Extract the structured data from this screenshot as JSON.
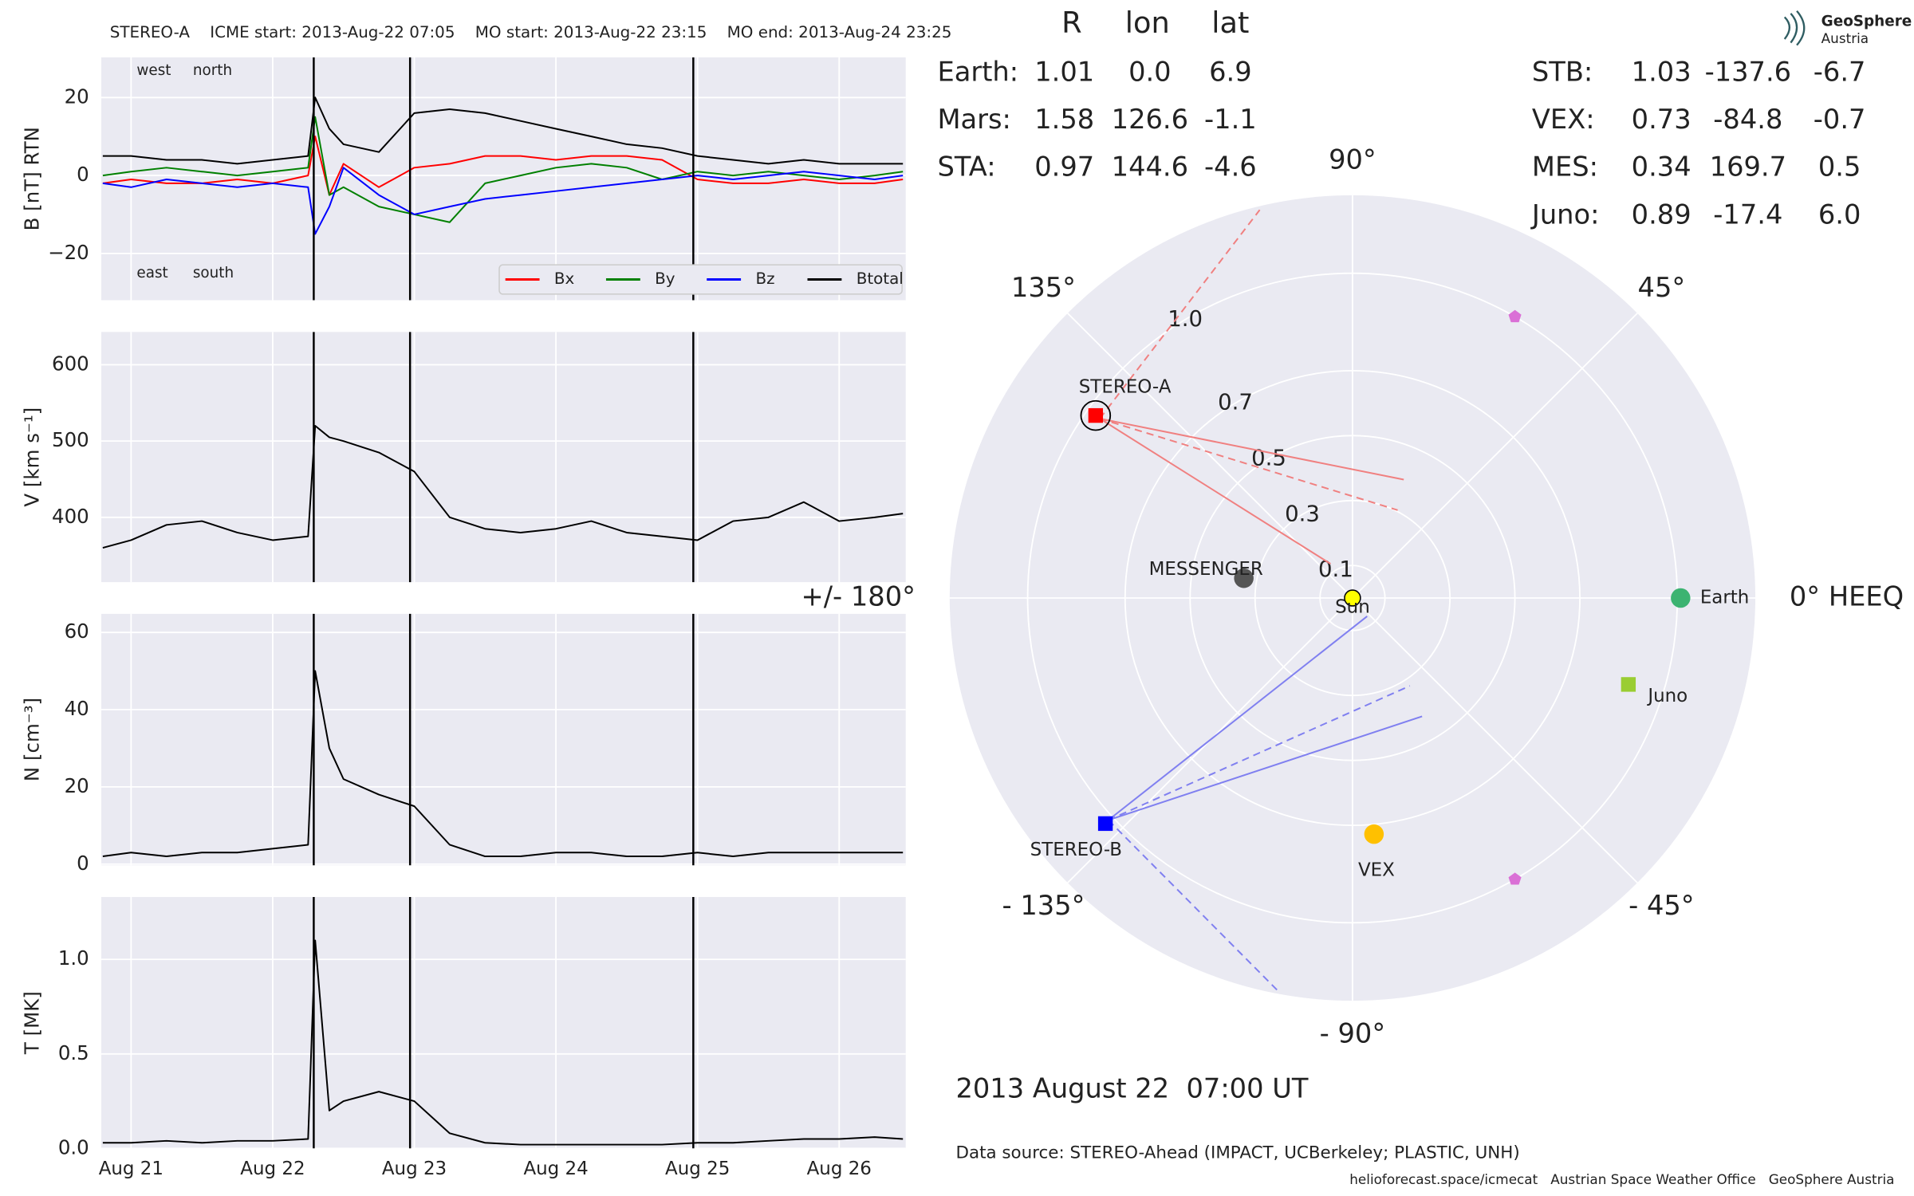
{
  "chart_data": [
    {
      "type": "line",
      "title": "STEREO-A    ICME start: 2013-Aug-22 07:05    MO start: 2013-Aug-22 23:15    MO end: 2013-Aug-24 23:25",
      "ylabel": "B [nT] RTN",
      "x": [
        20.8,
        21.0,
        21.25,
        21.5,
        21.75,
        22.0,
        22.25,
        22.3,
        22.4,
        22.5,
        22.75,
        23.0,
        23.25,
        23.5,
        23.75,
        24.0,
        24.25,
        24.5,
        24.75,
        25.0,
        25.25,
        25.5,
        25.75,
        26.0,
        26.25,
        26.45
      ],
      "series": [
        {
          "name": "Bx",
          "color": "#ff0000",
          "values": [
            -2,
            -1,
            -2,
            -2,
            -1,
            -2,
            0,
            10,
            -5,
            3,
            -3,
            2,
            3,
            5,
            5,
            4,
            5,
            5,
            4,
            -1,
            -2,
            -2,
            -1,
            -2,
            -2,
            -1
          ]
        },
        {
          "name": "By",
          "color": "#008000",
          "values": [
            0,
            1,
            2,
            1,
            0,
            1,
            2,
            15,
            -5,
            -3,
            -8,
            -10,
            -12,
            -2,
            0,
            2,
            3,
            2,
            -1,
            1,
            0,
            1,
            0,
            -1,
            0,
            1
          ]
        },
        {
          "name": "Bz",
          "color": "#0000ff",
          "values": [
            -2,
            -3,
            -1,
            -2,
            -3,
            -2,
            -3,
            -15,
            -8,
            2,
            -5,
            -10,
            -8,
            -6,
            -5,
            -4,
            -3,
            -2,
            -1,
            0,
            -1,
            0,
            1,
            0,
            -1,
            0
          ]
        },
        {
          "name": "Btotal",
          "color": "#000000",
          "values": [
            5,
            5,
            4,
            4,
            3,
            4,
            5,
            20,
            12,
            8,
            6,
            16,
            17,
            16,
            14,
            12,
            10,
            8,
            7,
            5,
            4,
            3,
            4,
            3,
            3,
            3
          ]
        }
      ],
      "annotations": [
        {
          "text": "west",
          "color": "#008000"
        },
        {
          "text": "north",
          "color": "#0000ff"
        },
        {
          "text": "east",
          "color": "#008000"
        },
        {
          "text": "south",
          "color": "#0000ff"
        }
      ],
      "legend": "lower right",
      "xlim": [
        20.79,
        26.47
      ],
      "xticks": [
        21,
        22,
        23,
        24,
        25,
        26
      ],
      "ylim": [
        -32,
        30.3
      ],
      "yticks": [
        {
          "value": -20,
          "label": "−20"
        },
        0,
        20
      ],
      "vlines": [
        22.29,
        22.97,
        24.97
      ],
      "grid": true
    },
    {
      "type": "line",
      "ylabel": "V [km s⁻¹]",
      "x": [
        20.8,
        21.0,
        21.25,
        21.5,
        21.75,
        22.0,
        22.25,
        22.3,
        22.4,
        22.5,
        22.75,
        23.0,
        23.25,
        23.5,
        23.75,
        24.0,
        24.25,
        24.5,
        24.75,
        25.0,
        25.25,
        25.5,
        25.75,
        26.0,
        26.25,
        26.45
      ],
      "series": [
        {
          "name": "V",
          "color": "#000000",
          "values": [
            360,
            370,
            390,
            395,
            380,
            370,
            375,
            520,
            505,
            500,
            485,
            460,
            400,
            385,
            380,
            385,
            395,
            380,
            375,
            370,
            395,
            400,
            420,
            395,
            400,
            405
          ]
        }
      ],
      "xlim": [
        20.79,
        26.47
      ],
      "xticks": [
        21,
        22,
        23,
        24,
        25,
        26
      ],
      "ylim": [
        315,
        643
      ],
      "yticks": [
        400,
        500,
        600
      ],
      "vlines": [
        22.29,
        22.97,
        24.97
      ],
      "grid": true
    },
    {
      "type": "line",
      "ylabel": "N [cm⁻³]",
      "x": [
        20.8,
        21.0,
        21.25,
        21.5,
        21.75,
        22.0,
        22.25,
        22.3,
        22.4,
        22.5,
        22.75,
        23.0,
        23.25,
        23.5,
        23.75,
        24.0,
        24.25,
        24.5,
        24.75,
        25.0,
        25.25,
        25.5,
        25.75,
        26.0,
        26.25,
        26.45
      ],
      "series": [
        {
          "name": "N",
          "color": "#000000",
          "values": [
            2,
            3,
            2,
            3,
            3,
            4,
            5,
            50,
            30,
            22,
            18,
            15,
            5,
            2,
            2,
            3,
            3,
            2,
            2,
            3,
            2,
            3,
            3,
            3,
            3,
            3
          ]
        }
      ],
      "xlim": [
        20.79,
        26.47
      ],
      "xticks": [
        21,
        22,
        23,
        24,
        25,
        26
      ],
      "ylim": [
        -0.3,
        64.8
      ],
      "yticks": [
        0,
        20,
        40,
        60
      ],
      "vlines": [
        22.29,
        22.97,
        24.97
      ],
      "grid": true
    },
    {
      "type": "line",
      "ylabel": "T [MK]",
      "x": [
        20.8,
        21.0,
        21.25,
        21.5,
        21.75,
        22.0,
        22.25,
        22.3,
        22.4,
        22.5,
        22.75,
        23.0,
        23.25,
        23.5,
        23.75,
        24.0,
        24.25,
        24.5,
        24.75,
        25.0,
        25.25,
        25.5,
        25.75,
        26.0,
        26.25,
        26.45
      ],
      "series": [
        {
          "name": "T",
          "color": "#000000",
          "values": [
            0.03,
            0.03,
            0.04,
            0.03,
            0.04,
            0.04,
            0.05,
            1.1,
            0.2,
            0.25,
            0.3,
            0.25,
            0.08,
            0.03,
            0.02,
            0.02,
            0.02,
            0.02,
            0.02,
            0.03,
            0.03,
            0.04,
            0.05,
            0.05,
            0.06,
            0.05
          ]
        }
      ],
      "xlim": [
        20.79,
        26.47
      ],
      "xticks": [
        {
          "value": 21,
          "label": "Aug 21"
        },
        {
          "value": 22,
          "label": "Aug 22"
        },
        {
          "value": 23,
          "label": "Aug 23"
        },
        {
          "value": 24,
          "label": "Aug 24"
        },
        {
          "value": 25,
          "label": "Aug 25"
        },
        {
          "value": 26,
          "label": "Aug 26"
        }
      ],
      "ylim": [
        0,
        1.33
      ],
      "yticks": [
        {
          "value": 0,
          "label": "0.0"
        },
        0.5,
        {
          "value": 1,
          "label": "1.0"
        }
      ],
      "vlines": [
        22.29,
        22.97,
        24.97
      ],
      "grid": true
    },
    {
      "type": "polar",
      "rlim": [
        0,
        1.24
      ],
      "rticks": [
        0.1,
        0.3,
        0.5,
        0.7,
        {
          "value": 1,
          "label": "1.0"
        }
      ],
      "angle_ticks": [
        {
          "value": 0,
          "label": "0° HEEQ"
        },
        {
          "value": 45,
          "label": "45°"
        },
        {
          "value": 90,
          "label": "90°"
        },
        {
          "value": 135,
          "label": "135°"
        },
        {
          "value": 180,
          "label": "+/- 180°"
        },
        {
          "value": -135,
          "label": "- 135°"
        },
        {
          "value": -90,
          "label": "- 90°"
        },
        {
          "value": -45,
          "label": "- 45°"
        }
      ],
      "points": [
        {
          "name": "Sun",
          "r": 0,
          "lon": 0,
          "color": "#ffff00",
          "label_color": "#000000",
          "marker": "circle"
        },
        {
          "name": "Earth",
          "r": 1.01,
          "lon": 0,
          "color": "#3cb371",
          "label_color": "#3cb371",
          "marker": "circle"
        },
        {
          "name": "STEREO-A",
          "r": 0.97,
          "lon": 144.6,
          "color": "#ff0000",
          "label_color": "#ff0000",
          "marker": "square"
        },
        {
          "name": "STEREO-B",
          "r": 1.03,
          "lon": -137.6,
          "color": "#0000ff",
          "label_color": "#0000ff",
          "marker": "square"
        },
        {
          "name": "VEX",
          "r": 0.73,
          "lon": -84.8,
          "color": "#ffc000",
          "label_color": "#ffa500",
          "marker": "circle"
        },
        {
          "name": "MESSENGER",
          "r": 0.34,
          "lon": 169.7,
          "color": "#555555",
          "label_color": "#9a9a9a",
          "marker": "circle"
        },
        {
          "name": "Juno",
          "r": 0.89,
          "lon": -17.4,
          "color": "#9acd32",
          "label_color": "#9acd32",
          "marker": "square"
        },
        {
          "name": null,
          "r": 1.0,
          "lon": 60,
          "color": "#da70d6",
          "marker": "pentagon"
        },
        {
          "name": null,
          "r": 1.0,
          "lon": -60,
          "color": "#da70d6",
          "marker": "pentagon"
        }
      ],
      "grid": true
    }
  ],
  "positions": {
    "columns": [
      "R",
      "lon",
      "lat"
    ],
    "rows": [
      {
        "name": "Earth:",
        "color": "#3cb371",
        "values": [
          "1.01",
          "0.0",
          "6.9"
        ]
      },
      {
        "name": "Mars:",
        "color": "#f4694b",
        "values": [
          "1.58",
          "126.6",
          "-1.1"
        ]
      },
      {
        "name": "STA:",
        "color": "#ff0000",
        "values": [
          "0.97",
          "144.6",
          "-4.6"
        ]
      },
      {
        "name": "STB:",
        "color": "#0000ff",
        "values": [
          "1.03",
          "-137.6",
          "-6.7"
        ]
      },
      {
        "name": "VEX:",
        "color": "#ffa500",
        "values": [
          "0.73",
          "-84.8",
          "-0.7"
        ]
      },
      {
        "name": "MES:",
        "color": "#a9a9a9",
        "values": [
          "0.34",
          "169.7",
          "0.5"
        ]
      },
      {
        "name": "Juno:",
        "color": "#9acd32",
        "values": [
          "0.89",
          "-17.4",
          "6.0"
        ]
      }
    ]
  },
  "time": "2013 August 22  07:00 UT",
  "source": "Data source: STEREO-Ahead (IMPACT, UCBerkeley; PLASTIC, UNH)",
  "footer": "helioforecast.space/icmecat   Austrian Space Weather Office   GeoSphere Austria",
  "logo": {
    "name": "GeoSphere",
    "sub": "Austria"
  }
}
